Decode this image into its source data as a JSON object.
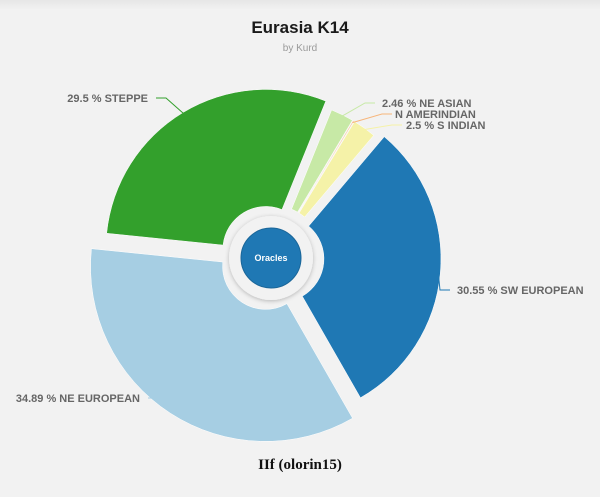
{
  "header": {
    "title": "Eurasia K14",
    "subtitle": "by Kurd"
  },
  "footer": {
    "text": "IIf (olorin15)"
  },
  "chart_data": {
    "type": "pie",
    "title": "Eurasia K14",
    "subtitle": "by Kurd",
    "center_label": "Oracles",
    "slices": [
      {
        "name": "NE ASIAN",
        "value": 2.46,
        "label": "2.46 %  NE ASIAN",
        "color": "#c7e9a6",
        "offset": 1.0
      },
      {
        "name": "N AMERINDIAN",
        "value": 0.1,
        "label": "N AMERINDIAN",
        "color": "#f7b57a",
        "offset": 1.0
      },
      {
        "name": "S INDIAN",
        "value": 2.5,
        "label": "2.5 %  S INDIAN",
        "color": "#f5f2a8",
        "offset": 1.0
      },
      {
        "name": "SW EUROPEAN",
        "value": 30.55,
        "label": "30.55 %  SW EUROPEAN",
        "color": "#1f78b4",
        "offset": 1.0
      },
      {
        "name": "NE EUROPEAN",
        "value": 34.89,
        "label": "34.89 %  NE EUROPEAN",
        "color": "#a6cee3",
        "offset": 1.0
      },
      {
        "name": "STEPPE",
        "value": 29.5,
        "label": "29.5 %  STEPPE",
        "color": "#33a02c",
        "offset": 1.0
      }
    ],
    "legend": "none"
  }
}
